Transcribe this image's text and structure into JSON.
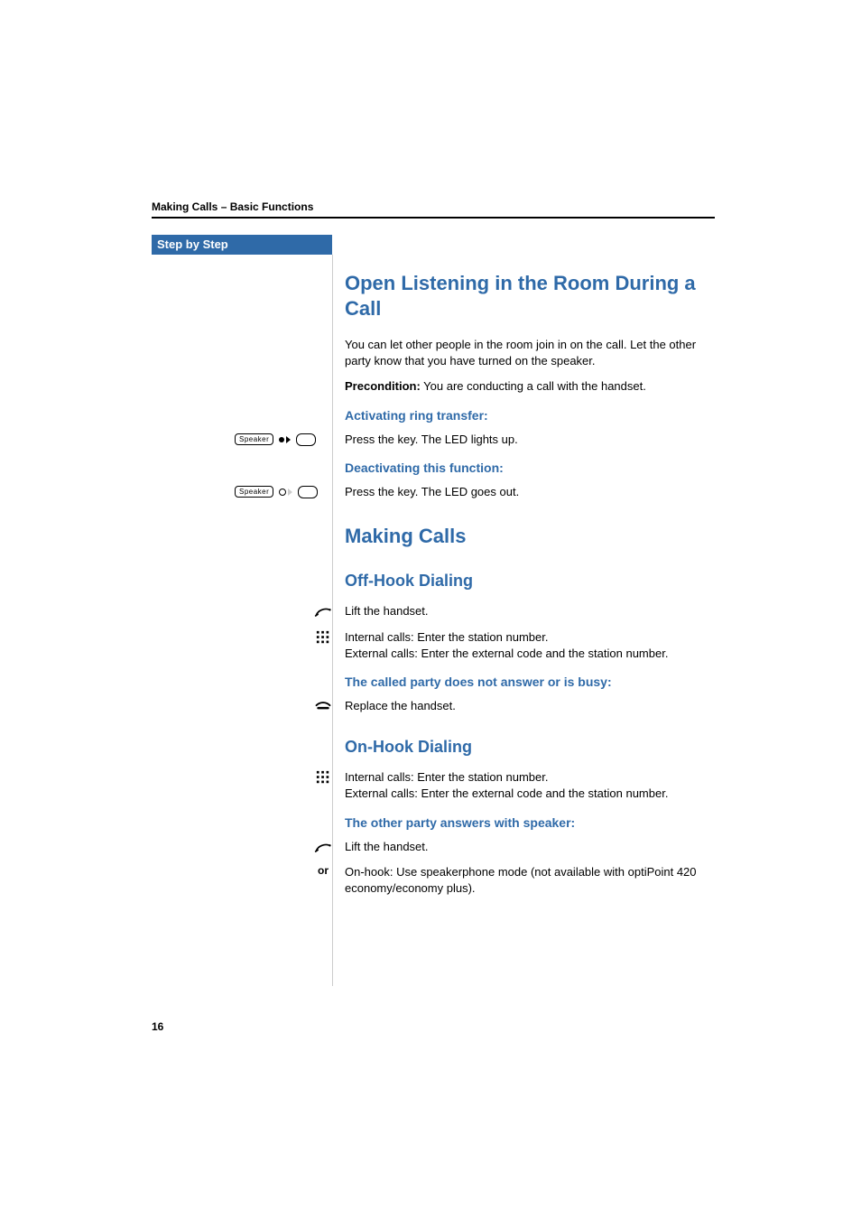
{
  "colors": {
    "accent": "#2f6aa8",
    "rule": "#000000",
    "sidebar_rule": "#cccccc",
    "text": "#000000",
    "tab_bg": "#2f6aa8",
    "tab_text": "#ffffff",
    "page_bg": "#ffffff"
  },
  "fonts": {
    "body_family": "Arial, Helvetica, sans-serif",
    "h1_size_pt": 17,
    "h2_size_pt": 14,
    "h3_size_pt": 11,
    "body_size_pt": 10,
    "running_head_size_pt": 9,
    "page_num_size_pt": 9
  },
  "page_number": "16",
  "running_head": "Making Calls – Basic Functions",
  "step_tab": "Step by Step",
  "section_open_listening": {
    "title": "Open Listening in the Room During a Call",
    "intro": "You can let other people in the room join in on the call. Let the other party know that you have turned on the speaker.",
    "precondition_label": "Precondition:",
    "precondition_text": " You are conducting a call with the hand­set.",
    "activate_heading": "Activating ring transfer:",
    "activate_body": "Press the key. The LED lights up.",
    "deactivate_heading": "Deactivating this function:",
    "deactivate_body": "Press the key. The LED goes out."
  },
  "section_making_calls": {
    "title": "Making Calls",
    "off_hook": {
      "heading": "Off-Hook Dialing",
      "lift": "Lift the handset.",
      "dial": "Internal calls: Enter the station number.\nExternal calls: Enter the external code and the station number.",
      "noanswer_heading": "The called party does not answer or is busy:",
      "replace": "Replace the handset."
    },
    "on_hook": {
      "heading": "On-Hook Dialing",
      "dial": "Internal calls: Enter the station number.\nExternal calls: Enter the external code and the station number.",
      "answers_heading": "The other party answers with speaker:",
      "lift": "Lift the handset.",
      "or_label": "or",
      "or_text": "On-hook: Use speakerphone mode (not available with optiPoint 420 economy/economy plus)."
    }
  },
  "cues": {
    "speaker_key_label": "Speaker",
    "icons": {
      "handset_lift": "handset-lift-icon",
      "keypad": "keypad-icon",
      "handset_replace": "handset-replace-icon"
    }
  }
}
